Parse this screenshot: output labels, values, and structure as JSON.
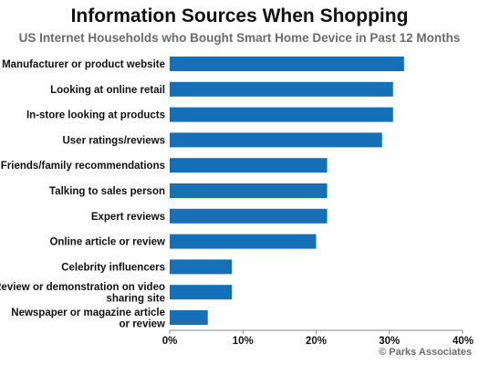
{
  "title": "Information Sources When Shopping",
  "subtitle": "US Internet Households who Bought Smart Home Device in Past 12 Months",
  "credit": "© Parks Associates",
  "colors": {
    "bar": "#1570b8",
    "axis": "#888888"
  },
  "chart_data": {
    "type": "bar",
    "orientation": "horizontal",
    "categories": [
      "Manufacturer or product website",
      "Looking at online retail",
      "In-store looking at products",
      "User ratings/reviews",
      "Friends/family recommendations",
      "Talking to sales person",
      "Expert reviews",
      "Online article or review",
      "Celebrity influencers",
      "Review or demonstration on video sharing site",
      "Newspaper or magazine article or review"
    ],
    "category_lines": [
      [
        "Manufacturer or product website"
      ],
      [
        "Looking at online retail"
      ],
      [
        "In-store looking at products"
      ],
      [
        "User ratings/reviews"
      ],
      [
        "Friends/family recommendations"
      ],
      [
        "Talking to sales person"
      ],
      [
        "Expert reviews"
      ],
      [
        "Online article or review"
      ],
      [
        "Celebrity influencers"
      ],
      [
        "Review or demonstration on video",
        "sharing site"
      ],
      [
        "Newspaper or magazine article",
        "or review"
      ]
    ],
    "values": [
      32,
      30.5,
      30.5,
      29,
      21.5,
      21.5,
      21.5,
      20,
      8.5,
      8.5,
      5.2
    ],
    "xlim": [
      0,
      40
    ],
    "xticks": [
      0,
      10,
      20,
      30,
      40
    ],
    "xtick_labels": [
      "0%",
      "10%",
      "20%",
      "30%",
      "40%"
    ],
    "grid": false,
    "legend": "none"
  }
}
